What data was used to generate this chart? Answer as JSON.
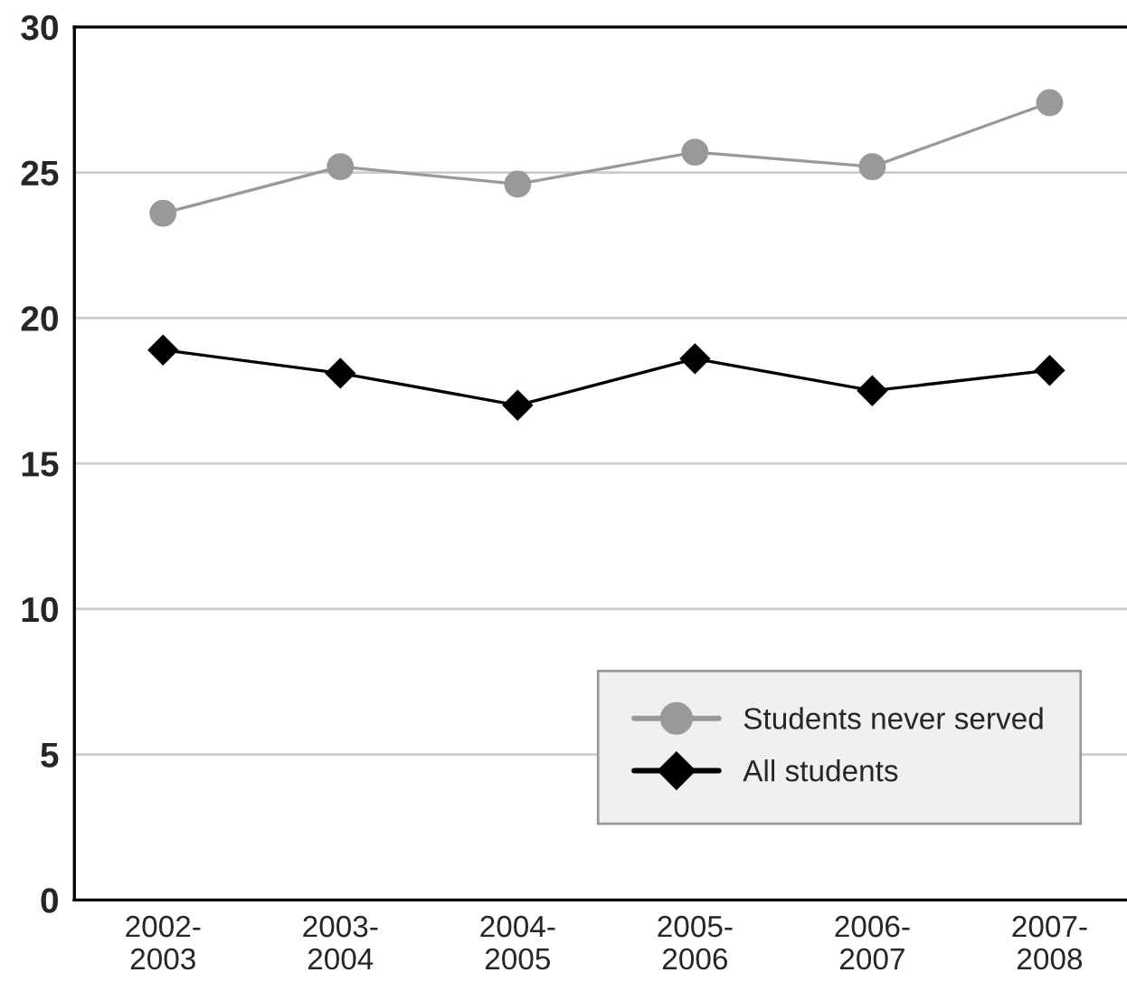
{
  "chart_data": {
    "type": "line",
    "categories": [
      "2002-\n2003",
      "2003-\n2004",
      "2004-\n2005",
      "2005-\n2006",
      "2006-\n2007",
      "2007-\n2008"
    ],
    "series": [
      {
        "name": "Students never served",
        "color": "#999999",
        "marker": "circle",
        "values": [
          23.6,
          25.2,
          24.6,
          25.7,
          25.2,
          27.4
        ]
      },
      {
        "name": "All students",
        "color": "#000000",
        "marker": "diamond",
        "values": [
          18.9,
          18.1,
          17.0,
          18.6,
          17.5,
          18.2
        ]
      }
    ],
    "ylim": [
      0,
      30
    ],
    "yticks": [
      0,
      5,
      10,
      15,
      20,
      25,
      30
    ],
    "grid": "y",
    "legend": "bottom right"
  }
}
